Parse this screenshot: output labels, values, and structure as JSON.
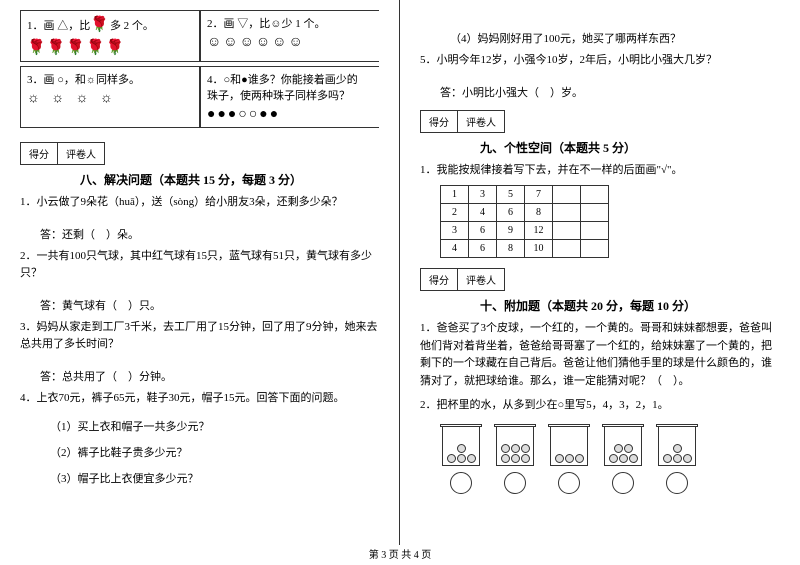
{
  "left": {
    "q1": {
      "label": "1．画 △，比",
      "tail": "多 2 个。",
      "icons": "🌹🌹🌹🌹🌹"
    },
    "q2": {
      "label": "2．画 ▽，比",
      "tail": "少 1 个。",
      "icons": "☺☺☺☺☺☺"
    },
    "q3": {
      "label": "3．画 ○，和",
      "tail": "同样多。",
      "icons": "☼ ☼ ☼ ☼"
    },
    "q4": {
      "label": "4．○和●谁多？你能接着画少的",
      "line2": "珠子，使两种珠子同样多吗？",
      "icons": "●●●○○●●"
    },
    "score": {
      "c1": "得分",
      "c2": "评卷人"
    },
    "sec8": "八、解决问题（本题共 15 分，每题 3 分）",
    "p1": "1．小云做了9朵花（huā），送（sòng）给小朋友3朵，还剩多少朵？",
    "a1": "答：还剩（　）朵。",
    "p2": "2．一共有100只气球，其中红气球有15只，蓝气球有51只，黄气球有多少只？",
    "a2": "答：黄气球有（　）只。",
    "p3": "3．妈妈从家走到工厂3千米，去工厂用了15分钟，回了用了9分钟，她来去总共用了多长时间？",
    "a3": "答：总共用了（　）分钟。",
    "p4": "4．上衣70元，裤子65元，鞋子30元，帽子15元。回答下面的问题。",
    "s41": "（1）买上衣和帽子一共多少元？",
    "s42": "（2）裤子比鞋子贵多少元？",
    "s43": "（3）帽子比上衣便宜多少元？"
  },
  "right": {
    "s44": "（4）妈妈刚好用了100元，她买了哪两样东西？",
    "p5": "5．小明今年12岁，小强今10岁，2年后，小明比小强大几岁？",
    "a5a": "答：小明比小强大（　）岁。",
    "score": {
      "c1": "得分",
      "c2": "评卷人"
    },
    "sec9": "九、个性空间（本题共 5 分）",
    "p9": "1．我能按规律接着写下去，并在不一样的后面画\"√\"。",
    "table": [
      [
        "1",
        "3",
        "5",
        "7",
        "",
        ""
      ],
      [
        "2",
        "4",
        "6",
        "8",
        "",
        ""
      ],
      [
        "3",
        "6",
        "9",
        "12",
        "",
        ""
      ],
      [
        "4",
        "6",
        "8",
        "10",
        "",
        ""
      ]
    ],
    "score2": {
      "c1": "得分",
      "c2": "评卷人"
    },
    "sec10": "十、附加题（本题共 20 分，每题 10 分）",
    "p10_1": "1．爸爸买了3个皮球，一个红的，一个黄的。哥哥和妹妹都想要，爸爸叫他们背对着背坐着，爸爸给哥哥塞了一个红的，给妹妹塞了一个黄的，把剩下的一个球藏在自己背后。爸爸让他们猜他手里的球是什么颜色的，谁猜对了，就把球给谁。那么，谁一定能猜对呢？（　）。",
    "p10_2": "2．把杯里的水，从多到少在○里写5，4，3，2，1。",
    "cups": [
      4,
      6,
      3,
      5,
      4
    ]
  },
  "footer": "第 3 页 共 4 页"
}
